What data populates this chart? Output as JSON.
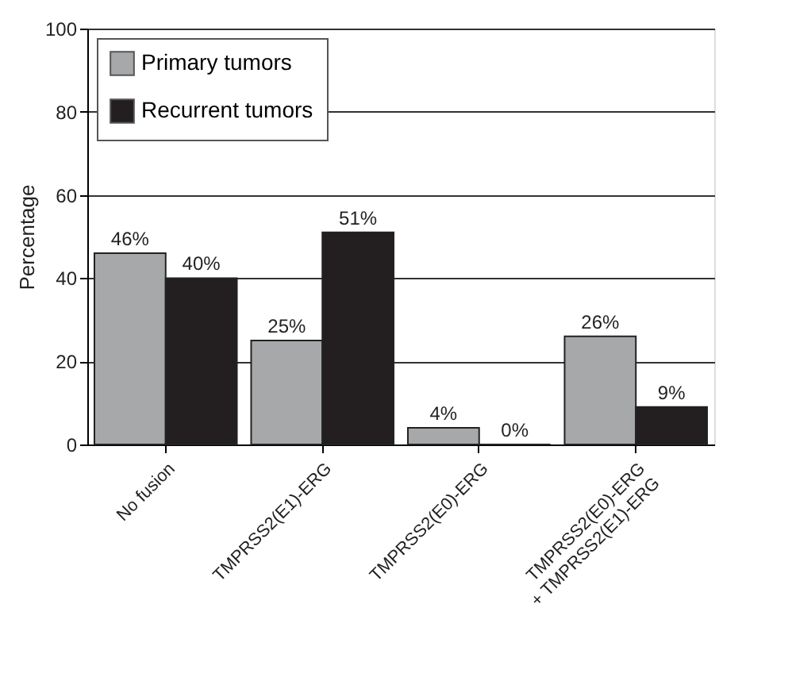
{
  "chart_data": {
    "type": "bar",
    "ylabel": "Percentage",
    "categories": [
      "No fusion",
      "TMPRSS2(E1)-ERG",
      "TMPRSS2(E0)-ERG",
      "TMPRSS2(E0)-ERG\n+ TMPRSS2(E1)-ERG"
    ],
    "series": [
      {
        "name": "Primary tumors",
        "color": "#a7a8aa",
        "values": [
          46,
          25,
          4,
          26
        ],
        "value_labels": [
          "46%",
          "25%",
          "4%",
          "26%"
        ]
      },
      {
        "name": "Recurrent tumors",
        "color": "#231f20",
        "values": [
          40,
          51,
          0,
          9
        ],
        "value_labels": [
          "40%",
          "51%",
          "0%",
          "9%"
        ]
      }
    ],
    "ylim": [
      0,
      100
    ],
    "yticks": [
      0,
      20,
      40,
      60,
      80,
      100
    ],
    "grid": "y",
    "legend": "top left"
  }
}
